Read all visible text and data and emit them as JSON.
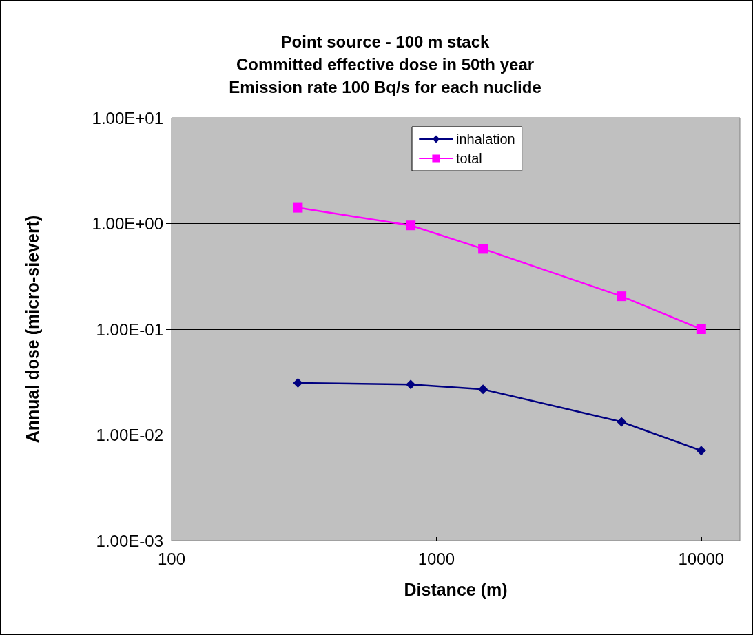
{
  "chart_data": {
    "type": "line",
    "title": "Point source - 100 m stack\nCommitted effective dose in 50th year\nEmission rate 100 Bq/s for each nuclide",
    "xlabel": "Distance (m)",
    "ylabel": "Annual dose (micro-sievert)",
    "x": [
      300,
      800,
      1500,
      5000,
      10000
    ],
    "series": [
      {
        "name": "inhalation",
        "color": "#000080",
        "marker": "diamond",
        "values": [
          0.031,
          0.03,
          0.027,
          0.0133,
          0.0071
        ]
      },
      {
        "name": "total",
        "color": "#ff00ff",
        "marker": "square",
        "values": [
          1.41,
          0.96,
          0.575,
          0.205,
          0.1
        ]
      }
    ],
    "log": "xy",
    "xlim": [
      100,
      14000
    ],
    "xticks": [
      100,
      1000,
      10000
    ],
    "ylim": [
      0.001,
      10
    ],
    "yticks": [
      {
        "value": 0.001,
        "label": "1.00E-03"
      },
      {
        "value": 0.01,
        "label": "1.00E-02"
      },
      {
        "value": 0.1,
        "label": "1.00E-01"
      },
      {
        "value": 1,
        "label": "1.00E+00"
      },
      {
        "value": 10,
        "label": "1.00E+01"
      }
    ],
    "grid": "y",
    "legend": "top"
  }
}
